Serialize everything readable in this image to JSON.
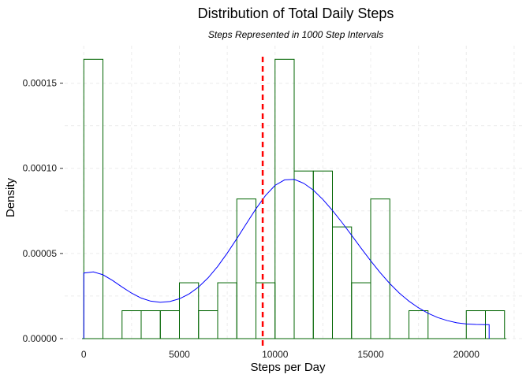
{
  "chart_data": {
    "type": "histogram",
    "title": "Distribution of Total Daily Steps",
    "subtitle": "Steps Represented in 1000 Step Intervals",
    "xlabel": "Steps per Day",
    "ylabel": "Density",
    "xlim": [
      -1000,
      23000
    ],
    "ylim": [
      0,
      0.000172
    ],
    "grid": "faint dashed major gridlines",
    "bin_width": 1000,
    "x_ticks": [
      0,
      5000,
      10000,
      15000,
      20000
    ],
    "x_tick_labels": [
      "0",
      "5000",
      "10000",
      "15000",
      "20000"
    ],
    "y_ticks": [
      0,
      5e-05,
      0.0001,
      0.00015
    ],
    "y_tick_labels": [
      "0.00000",
      "0.00005",
      "0.00010",
      "0.00015"
    ],
    "bins": [
      {
        "start": 0,
        "end": 1000,
        "density": 0.000164
      },
      {
        "start": 1000,
        "end": 2000,
        "density": 0
      },
      {
        "start": 2000,
        "end": 3000,
        "density": 1.64e-05
      },
      {
        "start": 3000,
        "end": 4000,
        "density": 1.64e-05
      },
      {
        "start": 4000,
        "end": 5000,
        "density": 1.64e-05
      },
      {
        "start": 5000,
        "end": 6000,
        "density": 3.28e-05
      },
      {
        "start": 6000,
        "end": 7000,
        "density": 1.64e-05
      },
      {
        "start": 7000,
        "end": 8000,
        "density": 3.28e-05
      },
      {
        "start": 8000,
        "end": 9000,
        "density": 8.2e-05
      },
      {
        "start": 9000,
        "end": 10000,
        "density": 3.28e-05
      },
      {
        "start": 10000,
        "end": 11000,
        "density": 0.000164
      },
      {
        "start": 11000,
        "end": 12000,
        "density": 9.84e-05
      },
      {
        "start": 12000,
        "end": 13000,
        "density": 9.84e-05
      },
      {
        "start": 13000,
        "end": 14000,
        "density": 6.56e-05
      },
      {
        "start": 14000,
        "end": 15000,
        "density": 3.28e-05
      },
      {
        "start": 15000,
        "end": 16000,
        "density": 8.2e-05
      },
      {
        "start": 16000,
        "end": 17000,
        "density": 0
      },
      {
        "start": 17000,
        "end": 18000,
        "density": 1.64e-05
      },
      {
        "start": 18000,
        "end": 19000,
        "density": 0
      },
      {
        "start": 19000,
        "end": 20000,
        "density": 0
      },
      {
        "start": 20000,
        "end": 21000,
        "density": 1.64e-05
      },
      {
        "start": 21000,
        "end": 22000,
        "density": 1.64e-05
      }
    ],
    "density_curve": {
      "x": [
        0,
        500,
        1000,
        1500,
        2000,
        2500,
        3000,
        3500,
        4000,
        4500,
        5000,
        5500,
        6000,
        6500,
        7000,
        7500,
        8000,
        8500,
        9000,
        9500,
        10000,
        10500,
        11000,
        11500,
        12000,
        12500,
        13000,
        13500,
        14000,
        14500,
        15000,
        15500,
        16000,
        16500,
        17000,
        17500,
        18000,
        18500,
        19000,
        19500,
        20000,
        20500,
        21000,
        21194
      ],
      "y": [
        3.85e-05,
        3.92e-05,
        3.75e-05,
        3.42e-05,
        3.03e-05,
        2.67e-05,
        2.38e-05,
        2.2e-05,
        2.13e-05,
        2.18e-05,
        2.34e-05,
        2.62e-05,
        3.03e-05,
        3.57e-05,
        4.24e-05,
        5.02e-05,
        5.87e-05,
        6.75e-05,
        7.62e-05,
        8.4e-05,
        9e-05,
        9.32e-05,
        9.35e-05,
        9.12e-05,
        8.72e-05,
        8.17e-05,
        7.53e-05,
        6.82e-05,
        6.07e-05,
        5.31e-05,
        4.57e-05,
        3.87e-05,
        3.23e-05,
        2.67e-05,
        2.2e-05,
        1.81e-05,
        1.49e-05,
        1.24e-05,
        1.06e-05,
        9.3e-06,
        8.6e-06,
        8.3e-06,
        8.2e-06,
        8.2e-06
      ]
    },
    "mean_line": {
      "x": 9354,
      "style": "dashed",
      "color": "#ff0000"
    },
    "colors": {
      "bar_outline": "#006400",
      "curve": "#0000ff",
      "mean": "#ff0000",
      "baseline": "#006400"
    }
  }
}
